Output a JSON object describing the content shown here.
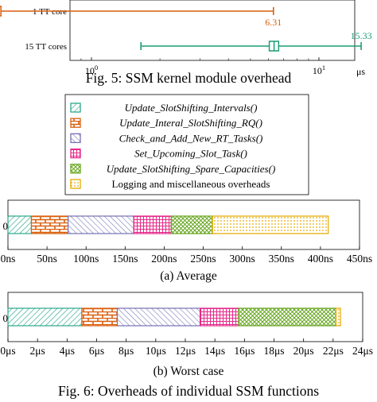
{
  "fig5": {
    "caption": "Fig. 5: SSM kernel module overhead",
    "unit_label": "μs",
    "xticks": [
      {
        "value": 0.1,
        "base": "10",
        "exp": "−1"
      },
      {
        "value": 1,
        "base": "10",
        "exp": "0"
      },
      {
        "value": 10,
        "base": "10",
        "exp": "1"
      }
    ]
  },
  "fig6": {
    "caption": "Fig. 6: Overheads of individual SSM functions",
    "legend": [
      {
        "label": "Update_SlotShifting_Intervals()",
        "color": "#2aa88a",
        "pattern": "diag"
      },
      {
        "label": "Update_Interal_SlotShifting_RQ()",
        "color": "#d95f0e",
        "pattern": "brick"
      },
      {
        "label": "Check_and_Add_New_RT_Tasks()",
        "color": "#7570b3",
        "pattern": "diag2"
      },
      {
        "label": "Set_Upcoming_Slot_Task()",
        "color": "#e7298a",
        "pattern": "grid"
      },
      {
        "label": "Update_SlotShifting_Spare_Capacities()",
        "color": "#66a61e",
        "pattern": "cross"
      },
      {
        "label": "Logging and miscellaneous overheads",
        "color": "#e6ab02",
        "pattern": "dots"
      }
    ],
    "average_caption": "(a) Average",
    "worst_caption": "(b) Worst case",
    "average_ticks": [
      "0ns",
      "50ns",
      "100ns",
      "150ns",
      "200ns",
      "250ns",
      "300ns",
      "350ns",
      "400ns",
      "450ns"
    ],
    "worst_ticks": [
      "0μs",
      "2μs",
      "4μs",
      "6μs",
      "8μs",
      "10μs",
      "12μs",
      "14μs",
      "16μs",
      "18μs",
      "20μs",
      "22μs",
      "24μs"
    ],
    "row_label": "0"
  },
  "chart_data": [
    {
      "type": "boxplot",
      "title": "Fig. 5: SSM kernel module overhead",
      "xscale": "log",
      "xlabel": "μs",
      "series": [
        {
          "name": "1 TT core",
          "whisker_low": 0.075,
          "q1": 0.37,
          "median": 0.385,
          "q3": 0.4,
          "whisker_high": 6.31,
          "annotation": "6.31",
          "color": "#d95f0e"
        },
        {
          "name": "15 TT cores",
          "whisker_low": 1.65,
          "q1": 6.05,
          "median": 6.35,
          "q3": 6.65,
          "whisker_high": 15.33,
          "annotation": "15.33",
          "color": "#1b9e77"
        }
      ]
    },
    {
      "type": "stacked_bar",
      "title": "(a) Average",
      "unit": "ns",
      "xlim": [
        0,
        450
      ],
      "categories": [
        "0"
      ],
      "series": [
        {
          "name": "Update_SlotShifting_Intervals()",
          "values": [
            30
          ]
        },
        {
          "name": "Update_Interal_SlotShifting_RQ()",
          "values": [
            47
          ]
        },
        {
          "name": "Check_and_Add_New_RT_Tasks()",
          "values": [
            84
          ]
        },
        {
          "name": "Set_Upcoming_Slot_Task()",
          "values": [
            48
          ]
        },
        {
          "name": "Update_SlotShifting_Spare_Capacities()",
          "values": [
            53
          ]
        },
        {
          "name": "Logging and miscellaneous overheads",
          "values": [
            148
          ]
        }
      ]
    },
    {
      "type": "stacked_bar",
      "title": "(b) Worst case",
      "unit": "μs",
      "xlim": [
        0,
        24
      ],
      "categories": [
        "0"
      ],
      "series": [
        {
          "name": "Update_SlotShifting_Intervals()",
          "values": [
            5.0
          ]
        },
        {
          "name": "Update_Interal_SlotShifting_RQ()",
          "values": [
            2.4
          ]
        },
        {
          "name": "Check_and_Add_New_RT_Tasks()",
          "values": [
            5.6
          ]
        },
        {
          "name": "Set_Upcoming_Slot_Task()",
          "values": [
            2.6
          ]
        },
        {
          "name": "Update_SlotShifting_Spare_Capacities()",
          "values": [
            6.6
          ]
        },
        {
          "name": "Logging and miscellaneous overheads",
          "values": [
            0.3
          ]
        }
      ]
    }
  ]
}
